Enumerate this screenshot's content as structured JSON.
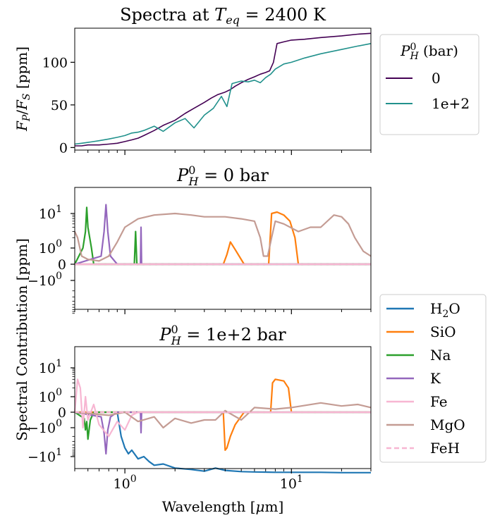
{
  "figure": {
    "xlabel_pre": "Wavelength [",
    "xlabel_mu": "μ",
    "xlabel_post": "m]",
    "ylabel_shared": "Spectral Contribution [ppm]"
  },
  "chart_data": [
    {
      "type": "line",
      "title_pre": "Spectra at ",
      "title_T": "T",
      "title_sub": "eq",
      "title_post": " = 2400 K",
      "ylabel_F1": "F",
      "ylabel_sub1": "P",
      "ylabel_slash": "/",
      "ylabel_F2": "F",
      "ylabel_sub2": "S",
      "ylabel_unit": " [ppm]",
      "xscale": "log",
      "xlim": [
        0.5,
        30
      ],
      "ylim": [
        -3,
        140
      ],
      "yticks": [
        0,
        50,
        100
      ],
      "legend": {
        "title_P": "P",
        "title_sup": "0",
        "title_sub": "H",
        "title_post": " (bar)",
        "placement": "right of axes"
      },
      "series": [
        {
          "name": "0",
          "color": "#440154",
          "x": [
            0.5,
            0.55,
            0.6,
            0.7,
            0.8,
            0.9,
            1.0,
            1.1,
            1.2,
            1.3,
            1.5,
            1.7,
            2.0,
            2.3,
            2.6,
            3.0,
            3.3,
            3.6,
            4.0,
            4.3,
            4.6,
            5.0,
            5.5,
            6.0,
            6.5,
            7.0,
            7.4,
            7.8,
            8.2,
            9.0,
            10,
            12,
            15,
            20,
            25,
            30
          ],
          "y": [
            2,
            2,
            3,
            3,
            4,
            5,
            7,
            9,
            11,
            14,
            20,
            26,
            32,
            40,
            46,
            53,
            58,
            62,
            65,
            68,
            72,
            76,
            80,
            83,
            86,
            88,
            90,
            100,
            122,
            124,
            126,
            127,
            129,
            131,
            133,
            134
          ]
        },
        {
          "name": "1e+2",
          "color": "#21918c",
          "x": [
            0.5,
            0.55,
            0.6,
            0.7,
            0.8,
            0.9,
            1.0,
            1.1,
            1.2,
            1.3,
            1.5,
            1.7,
            2.0,
            2.3,
            2.6,
            3.0,
            3.4,
            3.8,
            4.1,
            4.4,
            5.0,
            5.5,
            6.0,
            6.5,
            7.0,
            7.5,
            8.0,
            9.0,
            10,
            12,
            15,
            20,
            25,
            30
          ],
          "y": [
            4,
            5,
            6,
            8,
            10,
            12,
            14,
            17,
            18,
            20,
            25,
            19,
            29,
            34,
            23,
            38,
            46,
            60,
            48,
            75,
            78,
            77,
            79,
            76,
            82,
            86,
            92,
            98,
            100,
            105,
            110,
            115,
            119,
            122
          ]
        }
      ]
    },
    {
      "type": "line",
      "title_P": "P",
      "title_sup": "0",
      "title_sub": "H",
      "title_post": " = 0 bar",
      "xscale": "log",
      "yscale": "symlog",
      "xlim": [
        0.5,
        30
      ],
      "yticks": [
        {
          "base": "10",
          "exp": "1"
        },
        {
          "base": "10",
          "exp": "0"
        },
        {
          "base": "0",
          "exp": ""
        },
        {
          "base": "−10",
          "exp": "0"
        }
      ],
      "series": [
        {
          "name": "H2O",
          "color": "#1f77b4",
          "x": [
            0.5,
            30
          ],
          "y": [
            0,
            0
          ]
        },
        {
          "name": "SiO",
          "color": "#ff7f0e",
          "x": [
            0.5,
            3.9,
            4.1,
            4.3,
            4.6,
            5.2,
            7.3,
            7.6,
            8.2,
            9.0,
            9.8,
            10.5,
            11,
            30
          ],
          "y": [
            0,
            0,
            0.6,
            1.5,
            0.9,
            0,
            0,
            10,
            11,
            9,
            6,
            2,
            0,
            0
          ]
        },
        {
          "name": "Na",
          "color": "#2ca02c",
          "x": [
            0.5,
            0.56,
            0.58,
            0.59,
            0.6,
            0.63,
            0.65,
            1.14,
            1.16,
            1.18,
            30
          ],
          "y": [
            0,
            1,
            3,
            15,
            4,
            1,
            0,
            0,
            3,
            0,
            0
          ]
        },
        {
          "name": "K",
          "color": "#9467bd",
          "x": [
            0.5,
            0.72,
            0.75,
            0.77,
            0.79,
            0.82,
            0.9,
            1.24,
            1.25,
            1.26,
            30
          ],
          "y": [
            0,
            0.5,
            3,
            18,
            3,
            0.5,
            0,
            0,
            4,
            0,
            0
          ]
        },
        {
          "name": "Fe",
          "color": "#f7b6d2",
          "x": [
            0.5,
            30
          ],
          "y": [
            0,
            0
          ]
        },
        {
          "name": "MgO",
          "color": "#c49c94",
          "x": [
            0.5,
            0.52,
            0.55,
            0.6,
            0.7,
            0.8,
            0.9,
            1.0,
            1.2,
            1.5,
            2.0,
            2.5,
            3.0,
            3.5,
            4.0,
            5.0,
            6.0,
            6.5,
            6.8,
            7.2,
            7.6,
            8.0,
            9.0,
            11,
            13,
            15,
            18,
            20,
            22,
            24,
            27,
            30
          ],
          "y": [
            3,
            2,
            0.5,
            0.3,
            0.2,
            0.5,
            1.5,
            4,
            7,
            9,
            10,
            9,
            8,
            8,
            8,
            7,
            6,
            2,
            0.5,
            0.5,
            2,
            6,
            5,
            3,
            4,
            4,
            9,
            8,
            5,
            2,
            0.8,
            0.5
          ]
        },
        {
          "name": "FeH",
          "color": "#f7b6d2",
          "x": [
            0.5,
            30
          ],
          "y": [
            0,
            0
          ]
        }
      ]
    },
    {
      "type": "line",
      "title_P": "P",
      "title_sup": "0",
      "title_sub": "H",
      "title_post": " = 1e+2 bar",
      "xscale": "log",
      "yscale": "symlog",
      "xlim": [
        0.5,
        30
      ],
      "xticks": [
        {
          "base": "10",
          "exp": "0",
          "x": 1
        },
        {
          "base": "10",
          "exp": "1",
          "x": 10
        }
      ],
      "yticks": [
        {
          "base": "10",
          "exp": "1"
        },
        {
          "base": "10",
          "exp": "0"
        },
        {
          "base": "0",
          "exp": ""
        },
        {
          "base": "−10",
          "exp": "0"
        },
        {
          "base": "−10",
          "exp": "1"
        }
      ],
      "legend": {
        "placement": "right of axes",
        "entries": [
          {
            "label_pre": "H",
            "label_sub": "2",
            "label_post": "O",
            "color": "#1f77b4",
            "dash": false
          },
          {
            "label_pre": "SiO",
            "label_sub": "",
            "label_post": "",
            "color": "#ff7f0e",
            "dash": false
          },
          {
            "label_pre": "Na",
            "label_sub": "",
            "label_post": "",
            "color": "#2ca02c",
            "dash": false
          },
          {
            "label_pre": "K",
            "label_sub": "",
            "label_post": "",
            "color": "#9467bd",
            "dash": false
          },
          {
            "label_pre": "Fe",
            "label_sub": "",
            "label_post": "",
            "color": "#f7b6d2",
            "dash": false
          },
          {
            "label_pre": "MgO",
            "label_sub": "",
            "label_post": "",
            "color": "#c49c94",
            "dash": false
          },
          {
            "label_pre": "FeH",
            "label_sub": "",
            "label_post": "",
            "color": "#f7b6d2",
            "dash": true
          }
        ]
      },
      "series": [
        {
          "name": "H2O",
          "color": "#1f77b4",
          "x": [
            0.5,
            0.9,
            0.95,
            1.0,
            1.05,
            1.1,
            1.2,
            1.3,
            1.4,
            1.5,
            1.7,
            2.0,
            2.5,
            3.0,
            3.5,
            4.0,
            5.0,
            6.0,
            8.0,
            10,
            15,
            20,
            30
          ],
          "y": [
            0,
            0,
            -2,
            -5,
            -8,
            -6,
            -12,
            -10,
            -15,
            -20,
            -18,
            -25,
            -28,
            -32,
            -25,
            -30,
            -33,
            -34,
            -35,
            -35,
            -35,
            -36,
            -36
          ]
        },
        {
          "name": "SiO",
          "color": "#ff7f0e",
          "x": [
            0.5,
            3.9,
            4.0,
            4.1,
            4.3,
            4.6,
            5.2,
            7.5,
            7.7,
            8.0,
            9.0,
            9.6,
            10,
            30
          ],
          "y": [
            0,
            0,
            -6,
            -5,
            -2,
            -0.8,
            0,
            0,
            3,
            4,
            3.5,
            2,
            0,
            0
          ]
        },
        {
          "name": "Na",
          "color": "#2ca02c",
          "x": [
            0.5,
            0.57,
            0.58,
            0.59,
            0.6,
            0.62,
            0.65,
            30
          ],
          "y": [
            0,
            -0.4,
            -1.2,
            -0.6,
            -2.5,
            -0.5,
            0,
            0
          ]
        },
        {
          "name": "K",
          "color": "#9467bd",
          "x": [
            0.5,
            0.72,
            0.75,
            0.77,
            0.79,
            0.82,
            0.9,
            1.24,
            1.25,
            1.26,
            30
          ],
          "y": [
            0,
            -0.3,
            -1.5,
            -8,
            -1.2,
            -0.3,
            0,
            0,
            -1.5,
            0,
            0
          ]
        },
        {
          "name": "Fe",
          "color": "#f7b6d2",
          "x": [
            0.5,
            0.52,
            0.54,
            0.56,
            0.58,
            0.6,
            0.65,
            0.7,
            0.8,
            0.9,
            1.0,
            1.1,
            1.2,
            30
          ],
          "y": [
            0,
            4,
            2,
            -1,
            1,
            -0.5,
            0.5,
            -0.8,
            -2,
            -0.6,
            -1.2,
            -0.2,
            0,
            0
          ]
        },
        {
          "name": "MgO",
          "color": "#c49c94",
          "x": [
            0.5,
            0.8,
            1.0,
            1.2,
            1.5,
            1.7,
            2.0,
            2.5,
            3.0,
            3.5,
            4.0,
            5.0,
            6.0,
            8.0,
            10,
            15,
            20,
            25,
            30
          ],
          "y": [
            0,
            -0.2,
            0,
            -0.6,
            -0.3,
            -1,
            -0.4,
            -0.7,
            -0.5,
            -0.5,
            0.1,
            -0.5,
            0.3,
            0.2,
            0.3,
            0.6,
            0.4,
            0.5,
            0.3
          ]
        },
        {
          "name": "FeH",
          "color": "#f7b6d2",
          "x": [
            0.5,
            30
          ],
          "y": [
            0,
            0
          ]
        }
      ]
    }
  ]
}
